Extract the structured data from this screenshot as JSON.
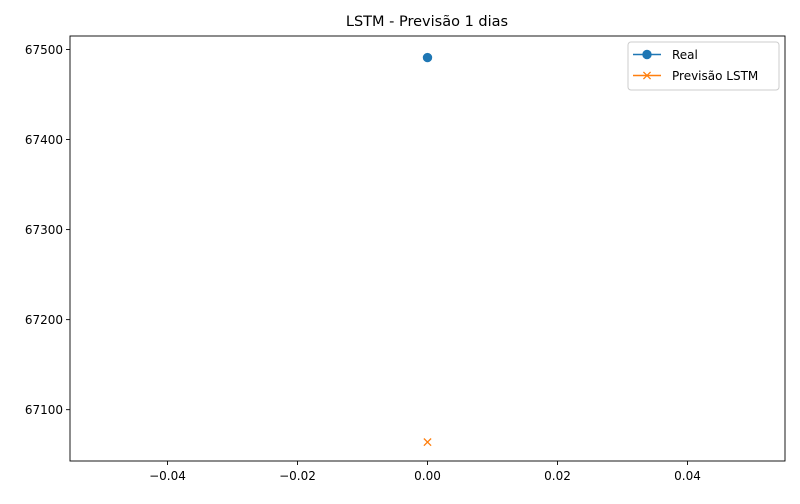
{
  "chart_data": {
    "type": "line",
    "title": "LSTM - Previsão 1 dias",
    "xlabel": "",
    "ylabel": "",
    "xlim": [
      -0.055,
      0.055
    ],
    "ylim": [
      67043,
      67515
    ],
    "x_ticks": [
      -0.04,
      -0.02,
      0.0,
      0.02,
      0.04
    ],
    "x_tick_labels": [
      "−0.04",
      "−0.02",
      "0.00",
      "0.02",
      "0.04"
    ],
    "y_ticks": [
      67100,
      67200,
      67300,
      67400,
      67500
    ],
    "y_tick_labels": [
      "67100",
      "67200",
      "67300",
      "67400",
      "67500"
    ],
    "grid": false,
    "legend_position": "top-right",
    "series": [
      {
        "name": "Real",
        "marker": "circle",
        "color": "#1f77b4",
        "x": [
          0
        ],
        "values": [
          67491
        ]
      },
      {
        "name": "Previsão LSTM",
        "marker": "x",
        "color": "#ff7f0e",
        "x": [
          0
        ],
        "values": [
          67064
        ]
      }
    ]
  }
}
